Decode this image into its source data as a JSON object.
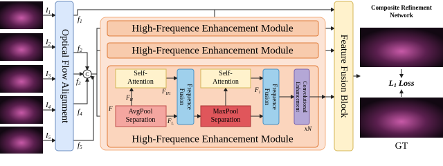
{
  "inputs": [
    {
      "base": "I",
      "sub": "1"
    },
    {
      "base": "I",
      "sub": "2"
    },
    {
      "base": "I",
      "sub": "3"
    },
    {
      "base": "I",
      "sub": "4"
    },
    {
      "base": "I",
      "sub": "5"
    }
  ],
  "optical_flow": "Optical Flow Alignment",
  "features": [
    {
      "base": "f",
      "sub": "1"
    },
    {
      "base": "f",
      "sub": "2"
    },
    {
      "base": "f",
      "sub": "3"
    },
    {
      "base": "f",
      "sub": "4"
    },
    {
      "base": "f",
      "sub": "5"
    }
  ],
  "concat": "C",
  "hfem": {
    "labels": [
      "High-Frequence Enhancement Module",
      "High-Frequence Enhancement Module",
      "High-Frequence Enhancement Module"
    ],
    "self_attention": [
      [
        "Self-",
        "Attention"
      ],
      [
        "Self-",
        "Attention"
      ]
    ],
    "frequence_fusion": [
      [
        "Frequence",
        "Fusion"
      ],
      [
        "Frequence",
        "Fusion"
      ]
    ],
    "avgpool": [
      "AvgPool",
      "Separation"
    ],
    "maxpool": [
      "MaxPool",
      "Separation"
    ],
    "conv": [
      "Convolutional",
      "Enhancement"
    ],
    "signals": {
      "f_h": {
        "base": "F",
        "sub": "H"
      },
      "f_h1": {
        "base": "F",
        "sub": "H1"
      },
      "f": "F",
      "f_l": {
        "base": "F",
        "sub": "L"
      },
      "f_1": {
        "base": "F",
        "sub": "1"
      }
    },
    "repeat": "xN"
  },
  "fusion": "Feature Fusion Block",
  "refinement": {
    "title": [
      "Composite Refinement",
      "Network"
    ],
    "loss": {
      "base": "L",
      "sub": "1",
      "rest": "Loss"
    },
    "gt": "GT"
  }
}
